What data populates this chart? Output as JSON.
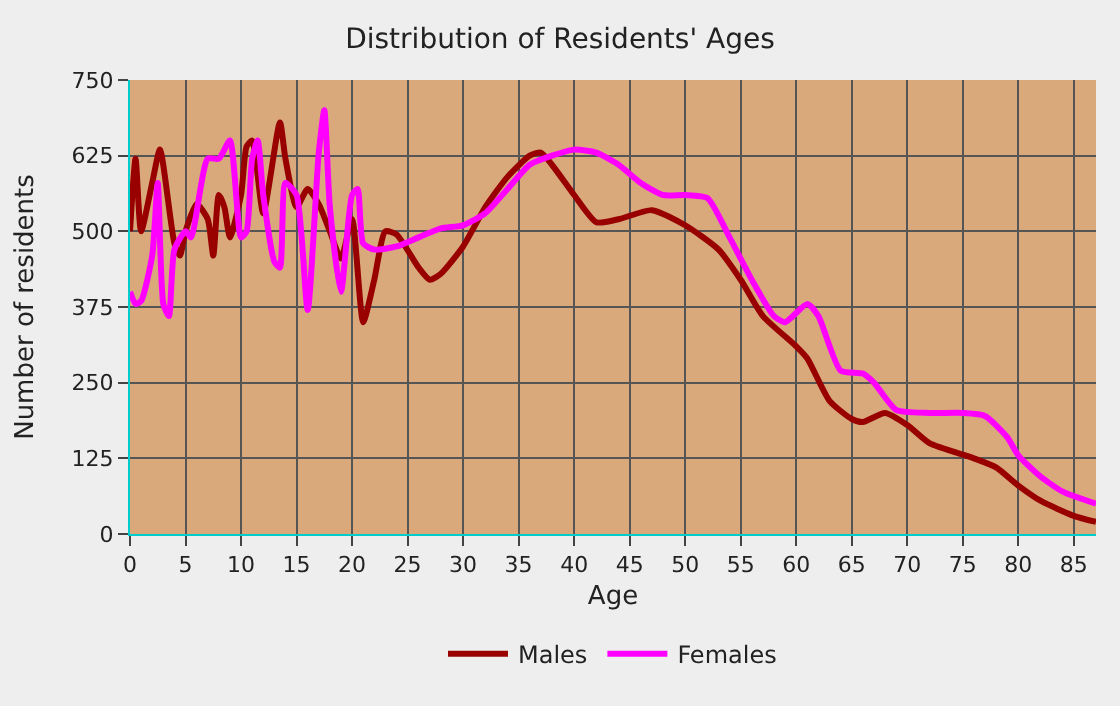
{
  "chart_data": {
    "type": "line",
    "title": "Distribution of Residents' Ages",
    "xlabel": "Age",
    "ylabel": "Number of residents",
    "xlim": [
      0,
      87
    ],
    "xticks": [
      0,
      5,
      10,
      15,
      20,
      25,
      30,
      35,
      40,
      45,
      50,
      55,
      60,
      65,
      70,
      75,
      80,
      85
    ],
    "ylim": [
      0,
      750
    ],
    "yticks": [
      0,
      125,
      250,
      375,
      500,
      625,
      750
    ],
    "grid": true,
    "legend": "bottom",
    "marker": "none",
    "line_style": "solid",
    "series": [
      {
        "name": "Males",
        "color": "#990000",
        "x": [
          0,
          0.5,
          1,
          2,
          2.7,
          4,
          4.5,
          5,
          6,
          7,
          7.5,
          8,
          8.5,
          9,
          10,
          10.5,
          11,
          12,
          13.5,
          14,
          15,
          16,
          17,
          18,
          19,
          20,
          21,
          22,
          23,
          24,
          26,
          27,
          28,
          30,
          32,
          34,
          36,
          37,
          38,
          40,
          42,
          44,
          47,
          50,
          53,
          55,
          57,
          60,
          61,
          63,
          65,
          66,
          68,
          70,
          72,
          76,
          78,
          80,
          82,
          85,
          87
        ],
        "values": [
          500,
          620,
          500,
          580,
          635,
          480,
          460,
          500,
          545,
          520,
          460,
          560,
          540,
          490,
          560,
          640,
          650,
          530,
          680,
          620,
          540,
          570,
          545,
          500,
          455,
          520,
          350,
          420,
          500,
          495,
          440,
          420,
          430,
          475,
          540,
          590,
          625,
          630,
          610,
          560,
          515,
          520,
          535,
          510,
          470,
          420,
          360,
          310,
          290,
          220,
          190,
          185,
          200,
          180,
          150,
          125,
          110,
          80,
          55,
          30,
          20
        ]
      },
      {
        "name": "Females",
        "color": "#ff00ff",
        "x": [
          0,
          0.5,
          1,
          2,
          2.5,
          3,
          3.5,
          4,
          5,
          5.5,
          7,
          8,
          9,
          10,
          10.5,
          11,
          11.5,
          12,
          13,
          13.5,
          14,
          15,
          16,
          17,
          17.5,
          18,
          19,
          20,
          20.5,
          21,
          22,
          24,
          26,
          28,
          30,
          32,
          34,
          36,
          38,
          40,
          42,
          44,
          46,
          48,
          50,
          52,
          54,
          56,
          58,
          59,
          61,
          62,
          64,
          66,
          67,
          69,
          72,
          75,
          77,
          79,
          80,
          82,
          84,
          87
        ],
        "values": [
          400,
          380,
          385,
          460,
          580,
          380,
          360,
          470,
          500,
          490,
          620,
          620,
          650,
          490,
          500,
          620,
          650,
          560,
          450,
          440,
          580,
          560,
          370,
          630,
          700,
          540,
          400,
          560,
          570,
          480,
          470,
          475,
          490,
          505,
          510,
          530,
          570,
          610,
          625,
          635,
          630,
          610,
          580,
          560,
          560,
          555,
          490,
          420,
          360,
          350,
          380,
          360,
          270,
          265,
          250,
          205,
          200,
          200,
          195,
          160,
          130,
          95,
          70,
          50
        ]
      }
    ]
  }
}
